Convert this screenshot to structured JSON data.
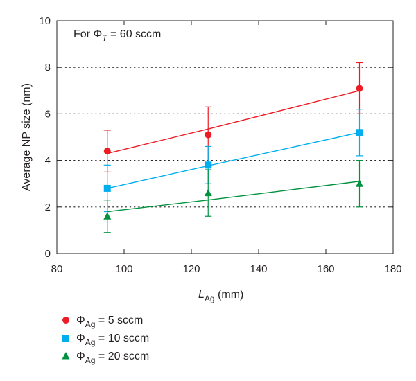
{
  "chart_data": {
    "type": "line",
    "annotation": {
      "prefix": "For ",
      "symbol": "Φ",
      "subscript": "T",
      "suffix": " = 60 sccm"
    },
    "xlabel": {
      "main": "L",
      "subscript": "Ag",
      "unit": " (mm)"
    },
    "ylabel": "Average NP size (nm)",
    "xlim": [
      80,
      180
    ],
    "ylim": [
      0,
      10
    ],
    "xticks": [
      80,
      100,
      120,
      140,
      160,
      180
    ],
    "yticks": [
      0,
      2,
      4,
      6,
      8,
      10
    ],
    "grid": "horizontal dotted at y = 2, 4, 6, 8",
    "legend_position": "bottom-left, below plot",
    "x": [
      95,
      125,
      170
    ],
    "series": [
      {
        "name": {
          "symbol": "Φ",
          "subscript": "Ag",
          "suffix": " = 5 sccm"
        },
        "color": "#ed1c24",
        "marker": "circle",
        "values": [
          4.4,
          5.1,
          7.1
        ],
        "errors": [
          0.9,
          1.2,
          1.1
        ],
        "fit": [
          4.3,
          5.35,
          7.0
        ]
      },
      {
        "name": {
          "symbol": "Φ",
          "subscript": "Ag",
          "suffix": " = 10 sccm"
        },
        "color": "#00aeef",
        "marker": "square",
        "values": [
          2.8,
          3.8,
          5.2
        ],
        "errors": [
          1.0,
          0.8,
          1.0
        ],
        "fit": [
          2.8,
          3.77,
          5.2
        ]
      },
      {
        "name": {
          "symbol": "Φ",
          "subscript": "Ag",
          "suffix": " = 20 sccm"
        },
        "color": "#00923f",
        "marker": "triangle",
        "values": [
          1.6,
          2.6,
          3.0
        ],
        "errors": [
          0.7,
          1.0,
          1.0
        ],
        "fit": [
          1.8,
          2.3,
          3.1
        ]
      }
    ]
  }
}
